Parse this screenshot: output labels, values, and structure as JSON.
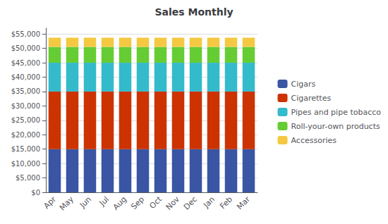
{
  "chart_data": {
    "type": "bar",
    "title": "Sales Monthly",
    "stacked": true,
    "categories": [
      "Apr",
      "May",
      "Jun",
      "Jul",
      "Aug",
      "Sep",
      "Oct",
      "Nov",
      "Dec",
      "Jan",
      "Feb",
      "Mar"
    ],
    "series": [
      {
        "name": "Cigars",
        "color": "#3955a3",
        "values": [
          15000,
          15000,
          15000,
          15000,
          15000,
          15000,
          15000,
          15000,
          15000,
          15000,
          15000,
          15000
        ]
      },
      {
        "name": "Cigarettes",
        "color": "#cc3300",
        "values": [
          20000,
          20000,
          20000,
          20000,
          20000,
          20000,
          20000,
          20000,
          20000,
          20000,
          20000,
          20000
        ]
      },
      {
        "name": "Pipes and pipe tobacco",
        "color": "#33bbcc",
        "values": [
          10000,
          10000,
          10000,
          10000,
          10000,
          10000,
          10000,
          10000,
          10000,
          10000,
          10000,
          10000
        ]
      },
      {
        "name": "Roll-your-own products",
        "color": "#66cc33",
        "values": [
          5500,
          5500,
          5500,
          5500,
          5500,
          5500,
          5500,
          5500,
          5500,
          5500,
          5500,
          5500
        ]
      },
      {
        "name": "Accessories",
        "color": "#f5c842",
        "values": [
          3200,
          3200,
          3200,
          3200,
          3200,
          3200,
          3200,
          3200,
          3200,
          3200,
          3200,
          3200
        ]
      }
    ],
    "ylim": [
      0,
      57000
    ],
    "yticks": [
      {
        "value": 0,
        "label": "$0"
      },
      {
        "value": 5000,
        "label": "$5,000"
      },
      {
        "value": 10000,
        "label": "$10,000"
      },
      {
        "value": 15000,
        "label": "$15,000"
      },
      {
        "value": 20000,
        "label": "$20,000"
      },
      {
        "value": 25000,
        "label": "$25,000"
      },
      {
        "value": 30000,
        "label": "$30,000"
      },
      {
        "value": 35000,
        "label": "$35,000"
      },
      {
        "value": 40000,
        "label": "$40,000"
      },
      {
        "value": 45000,
        "label": "$45,000"
      },
      {
        "value": 50000,
        "label": "$50,000"
      },
      {
        "value": 55000,
        "label": "$55,000"
      }
    ],
    "grid": true,
    "legend": "right"
  }
}
